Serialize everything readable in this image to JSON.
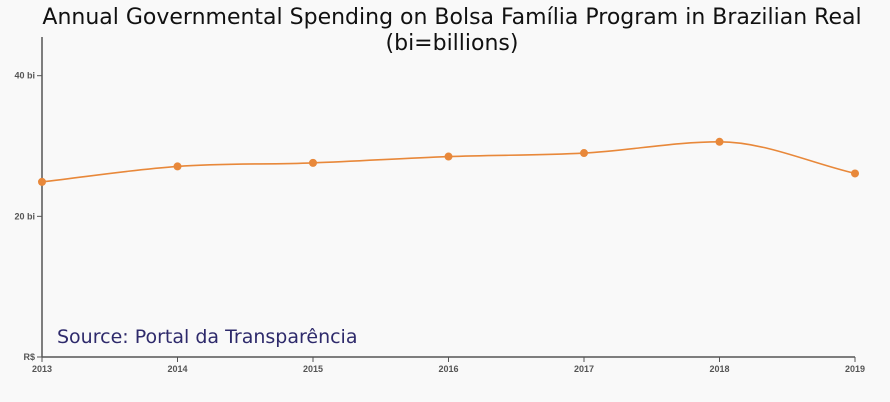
{
  "chart_data": {
    "type": "line",
    "title": "Annual Governmental Spending on Bolsa Família Program in Brazilian Real",
    "subtitle": "(bi=billions)",
    "x": [
      "2013",
      "2014",
      "2015",
      "2016",
      "2017",
      "2018",
      "2019"
    ],
    "series": [
      {
        "values": [
          24.9,
          27.1,
          27.6,
          28.5,
          29.0,
          30.6,
          26.1
        ]
      }
    ],
    "y_ticks": [
      {
        "value": 0,
        "label": "R$"
      },
      {
        "value": 20,
        "label": "20 bi"
      },
      {
        "value": 40,
        "label": "40 bi"
      }
    ],
    "ylim": [
      0,
      45.5
    ],
    "annotation": "Source: Portal da Transparência",
    "line_color": "#e8883a",
    "grid": false
  }
}
